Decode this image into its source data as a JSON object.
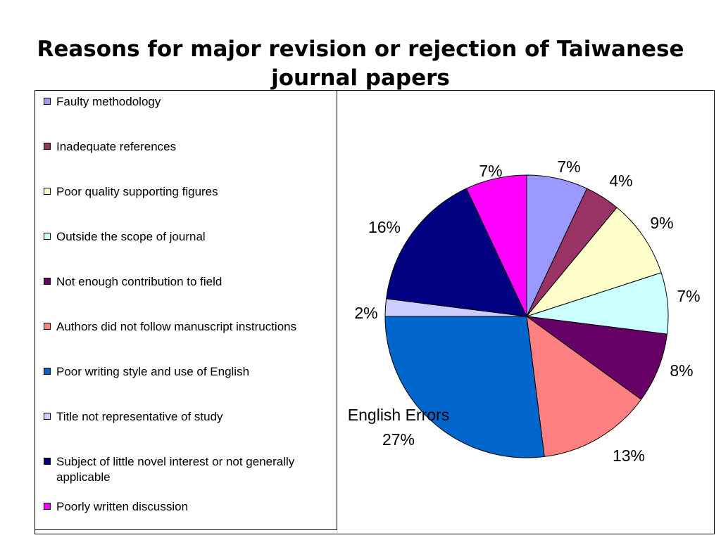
{
  "chart_data": {
    "type": "pie",
    "title_lines": [
      "Reasons for major revision or rejection of Taiwanese",
      "journal papers"
    ],
    "legend_placement": "left",
    "slices": [
      {
        "label": "Faulty methodology",
        "value": 7,
        "display": "7%",
        "color": "#9999ff"
      },
      {
        "label": "Inadequate references",
        "value": 4,
        "display": "4%",
        "color": "#993366"
      },
      {
        "label": "Poor quality supporting figures",
        "value": 9,
        "display": "9%",
        "color": "#ffffcc"
      },
      {
        "label": "Outside the scope of journal",
        "value": 7,
        "display": "7%",
        "color": "#ccffff"
      },
      {
        "label": "Not enough contribution to field",
        "value": 8,
        "display": "8%",
        "color": "#660066"
      },
      {
        "label": "Authors did not follow manuscript instructions",
        "value": 13,
        "display": "13%",
        "color": "#ff8080"
      },
      {
        "label": "Poor writing style and use of English",
        "value": 27,
        "display": "27%",
        "color": "#0066cc",
        "annotation": "English Errors"
      },
      {
        "label": "Title not representative of study",
        "value": 2,
        "display": "2%",
        "color": "#ccccff"
      },
      {
        "label": "Subject of little novel interest or not generally applicable",
        "value": 16,
        "display": "16%",
        "color": "#000080"
      },
      {
        "label": "Poorly written discussion",
        "value": 7,
        "display": "7%",
        "color": "#ff00ff"
      }
    ]
  }
}
